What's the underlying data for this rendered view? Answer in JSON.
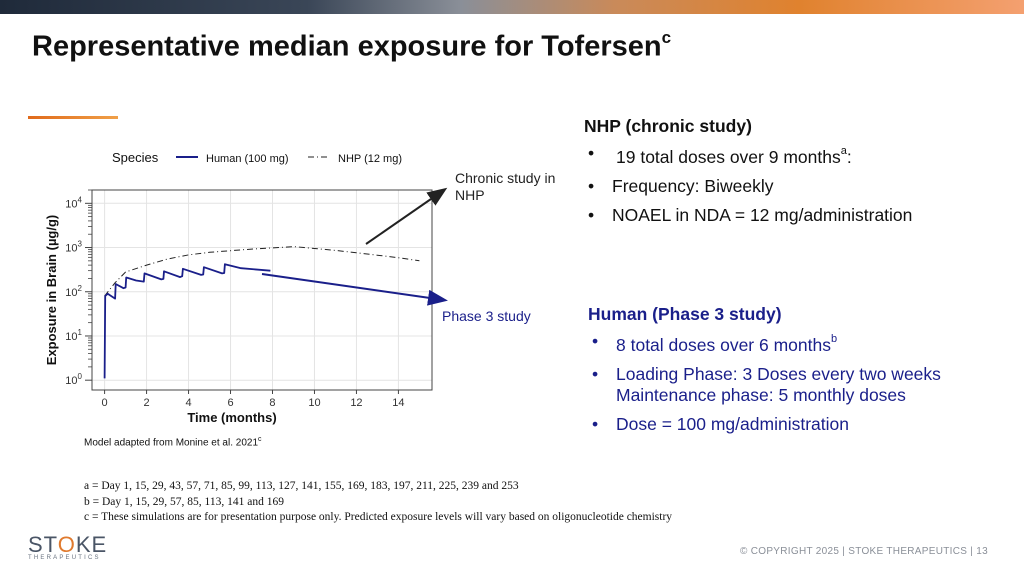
{
  "slide": {
    "title": "Representative median exposure for Tofersen",
    "title_sup": "c",
    "colors": {
      "accent": "#e07a2e",
      "human": "#1a1f8a",
      "nhp_line": "#222222"
    }
  },
  "chart_data": {
    "type": "line",
    "legend_title": "Species",
    "series": [
      {
        "name": "Human (100 mg)",
        "style": "solid",
        "x": [
          0,
          0.03,
          0.15,
          0.5,
          0.53,
          0.9,
          1.0,
          1.03,
          1.5,
          1.87,
          1.9,
          2.7,
          2.8,
          2.83,
          3.6,
          3.7,
          3.73,
          4.6,
          4.7,
          4.73,
          5.6,
          5.7,
          5.73,
          6.5,
          7.9
        ],
        "y": [
          1.1,
          80,
          90,
          70,
          150,
          120,
          125,
          210,
          180,
          170,
          260,
          190,
          195,
          290,
          215,
          225,
          330,
          240,
          245,
          360,
          260,
          265,
          420,
          340,
          300
        ]
      },
      {
        "name": "NHP (12 mg)",
        "style": "dashdot",
        "x": [
          0,
          0.5,
          1,
          2,
          3,
          4,
          5,
          6,
          7,
          8,
          9,
          9.5,
          10,
          11,
          12,
          13,
          14,
          15
        ],
        "y": [
          80,
          160,
          280,
          400,
          550,
          680,
          780,
          850,
          920,
          980,
          1050,
          1000,
          950,
          860,
          760,
          670,
          590,
          500
        ]
      }
    ],
    "xlabel": "Time (months)",
    "ylabel": "Exposure in Brain (µg/g)",
    "xlim": [
      -0.6,
      15.6
    ],
    "xticks": [
      0,
      2,
      4,
      6,
      8,
      10,
      12,
      14
    ],
    "xtick_labels": [
      "0",
      "2",
      "4",
      "6",
      "8",
      "10",
      "12",
      "14"
    ],
    "ylim": [
      0.6,
      20000
    ],
    "yscale": "log",
    "yticks": [
      1,
      10,
      100,
      1000,
      10000
    ],
    "ytick_labels": [
      {
        "base": "10",
        "exp": "0"
      },
      {
        "base": "10",
        "exp": "1"
      },
      {
        "base": "10",
        "exp": "2"
      },
      {
        "base": "10",
        "exp": "3"
      },
      {
        "base": "10",
        "exp": "4"
      }
    ],
    "grid": true,
    "legend_position": "top"
  },
  "model_note": {
    "text": "Model adapted from Monine et al. 2021",
    "sup": "c"
  },
  "callouts": {
    "nhp_line1": "Chronic study in",
    "nhp_line2": "NHP",
    "human": "Phase 3 study"
  },
  "nhp_panel": {
    "heading": "NHP (chronic study)",
    "items": [
      {
        "text": "19 total doses over 9 months",
        "sup": "a",
        "suffix": ":"
      },
      {
        "text": "Frequency: Biweekly"
      },
      {
        "text": "NOAEL in NDA = 12 mg/administration"
      }
    ]
  },
  "human_panel": {
    "heading": "Human (Phase 3 study)",
    "items": [
      {
        "text": "8 total doses over 6 months",
        "sup": "b"
      },
      {
        "text": "Loading Phase: 3 Doses every two weeks",
        "line2": "Maintenance phase: 5 monthly doses"
      },
      {
        "text": "Dose = 100 mg/administration"
      }
    ],
    "bullet": "•"
  },
  "footnotes": [
    "a = Day 1, 15, 29, 43, 57, 71, 85, 99, 113, 127, 141, 155, 169, 183, 197, 211, 225, 239 and 253",
    "b = Day 1, 15, 29, 57, 85, 113, 141 and 169",
    "c = These simulations are for presentation purpose only. Predicted exposure levels will vary based on oligonucleotide chemistry"
  ],
  "logo": {
    "word_start": "ST",
    "word_o": "O",
    "word_end": "KE",
    "sub": "THERAPEUTICS"
  },
  "footer": {
    "copyright": "© COPYRIGHT 2025  |  STOKE THERAPEUTICS  |  13"
  }
}
